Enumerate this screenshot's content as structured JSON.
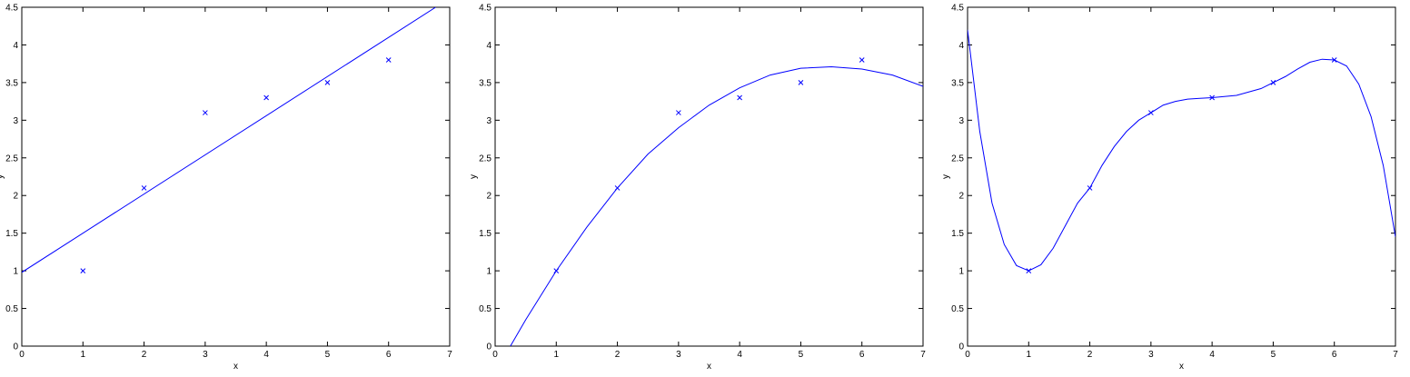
{
  "chart_data": [
    {
      "type": "scatter",
      "xlabel": "x",
      "ylabel": "y",
      "xlim": [
        0,
        7
      ],
      "ylim": [
        0,
        4.5
      ],
      "xticks": [
        0,
        1,
        2,
        3,
        4,
        5,
        6,
        7
      ],
      "yticks": [
        0,
        0.5,
        1,
        1.5,
        2,
        2.5,
        3,
        3.5,
        4,
        4.5
      ],
      "box": true,
      "series": [
        {
          "type": "scatter",
          "color": "#0000ff",
          "x": [
            1,
            2,
            3,
            4,
            5,
            6
          ],
          "values": [
            1,
            2.1,
            3.1,
            3.3,
            3.5,
            3.8
          ]
        },
        {
          "type": "line",
          "color": "#0000ff",
          "x": [
            0,
            6.77
          ],
          "values": [
            0.98,
            4.5
          ]
        }
      ]
    },
    {
      "type": "scatter",
      "xlabel": "x",
      "ylabel": "y",
      "xlim": [
        0,
        7
      ],
      "ylim": [
        0,
        4.5
      ],
      "xticks": [
        0,
        1,
        2,
        3,
        4,
        5,
        6,
        7
      ],
      "yticks": [
        0,
        0.5,
        1,
        1.5,
        2,
        2.5,
        3,
        3.5,
        4,
        4.5
      ],
      "box": true,
      "series": [
        {
          "type": "scatter",
          "color": "#0000ff",
          "x": [
            1,
            2,
            3,
            4,
            5,
            6
          ],
          "values": [
            1,
            2.1,
            3.1,
            3.3,
            3.5,
            3.8
          ]
        },
        {
          "type": "line",
          "color": "#0000ff",
          "x": [
            0.25,
            0.5,
            1,
            1.5,
            2,
            2.5,
            3,
            3.5,
            4,
            4.5,
            5,
            5.5,
            6,
            6.5,
            7
          ],
          "values": [
            0,
            0.35,
            1,
            1.58,
            2.1,
            2.55,
            2.9,
            3.2,
            3.43,
            3.6,
            3.69,
            3.71,
            3.68,
            3.6,
            3.45
          ]
        }
      ]
    },
    {
      "type": "scatter",
      "xlabel": "x",
      "ylabel": "y",
      "xlim": [
        0,
        7
      ],
      "ylim": [
        0,
        4.5
      ],
      "xticks": [
        0,
        1,
        2,
        3,
        4,
        5,
        6,
        7
      ],
      "yticks": [
        0,
        0.5,
        1,
        1.5,
        2,
        2.5,
        3,
        3.5,
        4,
        4.5
      ],
      "box": true,
      "series": [
        {
          "type": "scatter",
          "color": "#0000ff",
          "x": [
            1,
            2,
            3,
            4,
            5,
            6
          ],
          "values": [
            1,
            2.1,
            3.1,
            3.3,
            3.5,
            3.8
          ]
        },
        {
          "type": "line",
          "color": "#0000ff",
          "x": [
            0,
            0.2,
            0.4,
            0.6,
            0.8,
            1,
            1.2,
            1.4,
            1.6,
            1.8,
            2,
            2.2,
            2.4,
            2.6,
            2.8,
            3,
            3.2,
            3.4,
            3.6,
            3.8,
            4,
            4.4,
            4.8,
            5,
            5.2,
            5.4,
            5.6,
            5.8,
            6,
            6.2,
            6.4,
            6.6,
            6.8,
            7
          ],
          "values": [
            4.2,
            2.85,
            1.9,
            1.35,
            1.07,
            1,
            1.08,
            1.3,
            1.6,
            1.9,
            2.1,
            2.4,
            2.65,
            2.85,
            3,
            3.1,
            3.2,
            3.25,
            3.28,
            3.29,
            3.3,
            3.33,
            3.42,
            3.5,
            3.58,
            3.68,
            3.77,
            3.81,
            3.8,
            3.72,
            3.48,
            3.05,
            2.4,
            1.45
          ]
        }
      ]
    }
  ]
}
